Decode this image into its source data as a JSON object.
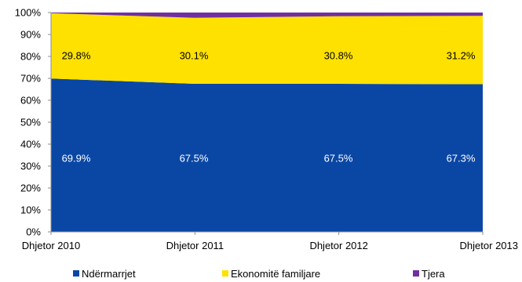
{
  "chart_data": {
    "type": "area",
    "stacked": true,
    "percent": true,
    "categories": [
      "Dhjetor 2010",
      "Dhjetor 2011",
      "Dhjetor 2012",
      "Dhjetor 2013"
    ],
    "series": [
      {
        "name": "Ndërmarrjet",
        "color": "#0A47A5",
        "values": [
          69.9,
          67.5,
          67.5,
          67.3
        ],
        "labels": [
          "69.9%",
          "67.5%",
          "67.5%",
          "67.3%"
        ],
        "label_color": "#ffffff"
      },
      {
        "name": "Ekonomitë familjare",
        "color": "#FFE100",
        "values": [
          29.8,
          30.1,
          30.8,
          31.2
        ],
        "labels": [
          "29.8%",
          "30.1%",
          "30.8%",
          "31.2%"
        ],
        "label_color": "#000000"
      },
      {
        "name": "Tjera",
        "color": "#7030A0",
        "values": [
          0.3,
          2.4,
          1.7,
          1.5
        ]
      }
    ],
    "y_ticks": [
      "0%",
      "10%",
      "20%",
      "30%",
      "40%",
      "50%",
      "60%",
      "70%",
      "80%",
      "90%",
      "100%"
    ],
    "ylim": [
      0,
      100
    ],
    "grid": false,
    "legend_position": "bottom"
  }
}
